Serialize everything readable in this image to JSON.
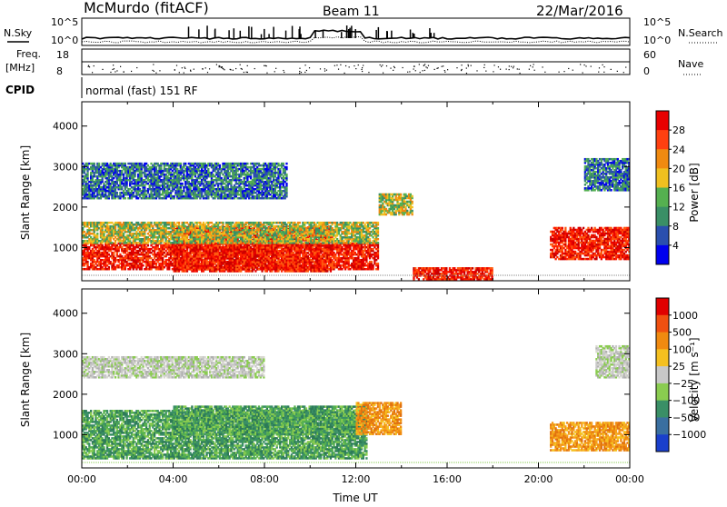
{
  "header": {
    "station": "McMurdo (fitACF)",
    "beam": "Beam 11",
    "date": "22/Mar/2016"
  },
  "top_panels": {
    "nsky_label": "N.Sky",
    "nsearch_label": "N.Search",
    "freq_label": "Freq.",
    "freq_unit": "[MHz]",
    "nave_label": "Nave",
    "cpid_label": "CPID",
    "cpid_value": "normal (fast) 151 RF",
    "noise_ticks_left": [
      "10^5",
      "10^0"
    ],
    "noise_ticks_right": [
      "10^5",
      "10^0"
    ],
    "freq_ticks": [
      "18",
      "8"
    ],
    "nave_ticks": [
      "60",
      "0"
    ]
  },
  "chart_data": [
    {
      "type": "heatmap",
      "ylabel": "Slant Range [km]",
      "y_ticks": [
        "4000",
        "3000",
        "2000",
        "1000"
      ],
      "ylim": [
        180,
        4600
      ],
      "colorbar": {
        "label": "Power [dB]",
        "ticks": [
          "28",
          "24",
          "20",
          "16",
          "12",
          "8",
          "4"
        ],
        "range": [
          0,
          30
        ],
        "colors": [
          "#0000ee",
          "#2a4fae",
          "#3a8f66",
          "#55b050",
          "#f0c020",
          "#f08a10",
          "#ff4010",
          "#e80000"
        ]
      },
      "bands": [
        {
          "t0": 0.0,
          "t1": 13.0,
          "r0": 450,
          "r1": 1100,
          "class": "strong"
        },
        {
          "t0": 4.0,
          "t1": 11.0,
          "r0": 400,
          "r1": 1500,
          "class": "strong"
        },
        {
          "t0": 0.0,
          "t1": 13.0,
          "r0": 1100,
          "r1": 1600,
          "class": "medium"
        },
        {
          "t0": 0.0,
          "t1": 9.0,
          "r0": 2200,
          "r1": 3100,
          "class": "weak"
        },
        {
          "t0": 13.0,
          "t1": 14.5,
          "r0": 1800,
          "r1": 2300,
          "class": "medium"
        },
        {
          "t0": 14.5,
          "t1": 18.0,
          "r0": 200,
          "r1": 500,
          "class": "strong"
        },
        {
          "t0": 20.5,
          "t1": 24.0,
          "r0": 700,
          "r1": 1500,
          "class": "strong"
        },
        {
          "t0": 22.0,
          "t1": 24.0,
          "r0": 2400,
          "r1": 3200,
          "class": "weak"
        }
      ]
    },
    {
      "type": "heatmap",
      "ylabel": "Slant Range [km]",
      "xlabel": "Time UT",
      "x_ticks": [
        "00:00",
        "04:00",
        "08:00",
        "12:00",
        "16:00",
        "20:00",
        "00:00"
      ],
      "xlim": [
        0,
        24
      ],
      "y_ticks": [
        "4000",
        "3000",
        "2000",
        "1000"
      ],
      "ylim": [
        180,
        4600
      ],
      "colorbar": {
        "label": "Velocity [m s⁻¹]",
        "ticks": [
          "1000",
          "500",
          "100",
          "25",
          "−25",
          "−100",
          "−500",
          "−1000"
        ],
        "colors": [
          "#1a3fcc",
          "#3a6fa0",
          "#3a8f66",
          "#8acc50",
          "#c8c8c8",
          "#f5c020",
          "#f08a10",
          "#f05010",
          "#e00000"
        ]
      },
      "bands": [
        {
          "t0": 0.0,
          "t1": 12.5,
          "r0": 400,
          "r1": 1600,
          "class": "pos_low"
        },
        {
          "t0": 4.0,
          "t1": 12.5,
          "r0": 1000,
          "r1": 1700,
          "class": "pos_mid"
        },
        {
          "t0": 0.0,
          "t1": 8.0,
          "r0": 2400,
          "r1": 2900,
          "class": "zero"
        },
        {
          "t0": 12.0,
          "t1": 14.0,
          "r0": 1000,
          "r1": 1800,
          "class": "neg_low"
        },
        {
          "t0": 20.5,
          "t1": 24.0,
          "r0": 600,
          "r1": 1300,
          "class": "neg_low"
        },
        {
          "t0": 22.5,
          "t1": 24.0,
          "r0": 2400,
          "r1": 3200,
          "class": "zero"
        }
      ]
    }
  ]
}
